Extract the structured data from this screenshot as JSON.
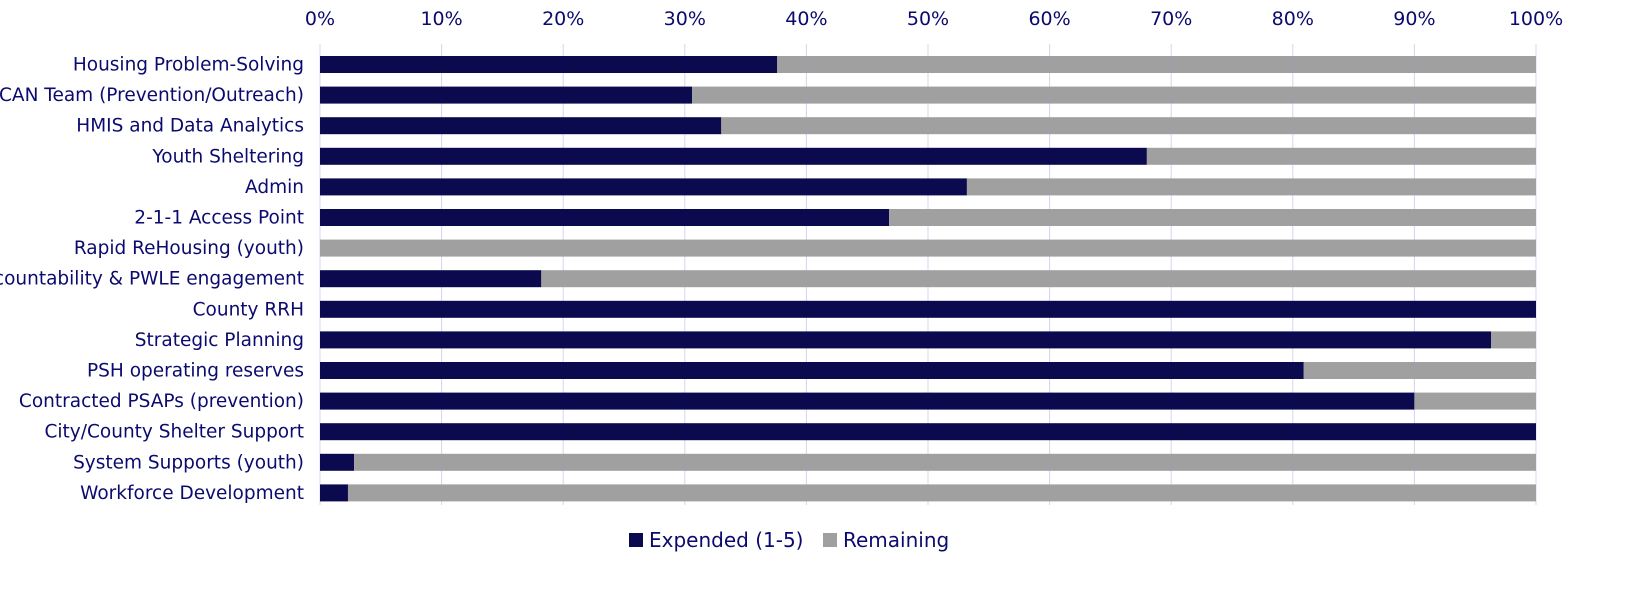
{
  "colors": {
    "expended": "#0b0a4f",
    "remaining": "#a0a0a0",
    "text": "#0b0a6e",
    "gridline": "#d4d4f4"
  },
  "chart_data": {
    "type": "bar",
    "orientation": "horizontal",
    "stacked": "percent",
    "title": "",
    "xlabel": "",
    "ylabel": "",
    "xlim": [
      0,
      100
    ],
    "x_axis_position": "top",
    "x_ticks": [
      "0%",
      "10%",
      "20%",
      "30%",
      "40%",
      "50%",
      "60%",
      "70%",
      "80%",
      "90%",
      "100%"
    ],
    "grid": "vertical",
    "legend_position": "bottom-center",
    "categories": [
      "Housing Problem-Solving",
      "CAN Team (Prevention/Outreach)",
      "HMIS and Data Analytics",
      "Youth Sheltering",
      "Admin",
      "2-1-1 Access Point",
      "Rapid ReHousing (youth)",
      "Accountability & PWLE engagement",
      "County RRH",
      "Strategic Planning",
      "PSH operating reserves",
      "Contracted PSAPs (prevention)",
      "City/County Shelter Support",
      "System Supports (youth)",
      "Workforce Development"
    ],
    "series": [
      {
        "name": "Expended (1-5)",
        "values": [
          37.6,
          30.6,
          33.0,
          68.0,
          53.2,
          46.8,
          0,
          18.2,
          100,
          96.3,
          80.9,
          90.0,
          100,
          2.8,
          2.3
        ]
      },
      {
        "name": "Remaining",
        "values": [
          62.4,
          69.4,
          67.0,
          32.0,
          46.8,
          53.2,
          100,
          81.8,
          0,
          3.7,
          19.1,
          10.0,
          0,
          97.2,
          97.7
        ]
      }
    ]
  }
}
